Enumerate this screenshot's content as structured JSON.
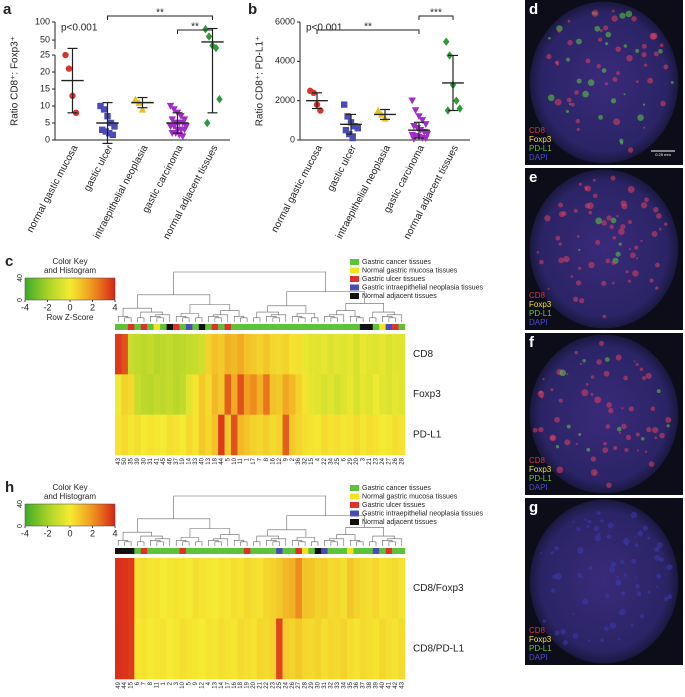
{
  "chart_data": [
    {
      "label": "a",
      "type": "scatter",
      "ylabel": "Ratio CD8⁺: Foxp3⁺",
      "ylim": [
        0,
        100
      ],
      "ybreak": 25,
      "yticks": [
        0,
        5,
        10,
        15,
        20,
        25,
        50,
        100
      ],
      "annotation": "p<0.001",
      "brackets": [
        {
          "label": "**",
          "between": [
            "gastic ulcer",
            "normal adjacent tissues"
          ]
        },
        {
          "label": "**",
          "between": [
            "gastic carcinoma",
            "normal adjacent tissues"
          ]
        }
      ],
      "series": [
        {
          "name": "normal gastic mucosa",
          "color": "#d9342b",
          "marker": "circle",
          "values": [
            25,
            21,
            13,
            8
          ],
          "mean": 17.5,
          "sd": 9.5
        },
        {
          "name": "gastic ulcer",
          "color": "#4b4bb5",
          "marker": "square",
          "values": [
            10,
            9,
            7,
            5,
            4,
            3,
            2.5,
            2,
            1.5
          ],
          "mean": 5,
          "sd": 6
        },
        {
          "name": "intraepithelial neoplasia",
          "color": "#e8c21a",
          "marker": "triangle",
          "values": [
            12,
            11,
            9
          ],
          "mean": 11,
          "sd": 1.5
        },
        {
          "name": "gastic carcinoma",
          "color": "#a02cc8",
          "marker": "triangle-down",
          "values": [
            10,
            9,
            8,
            7,
            6,
            6,
            5,
            5,
            5,
            4,
            4,
            4,
            3,
            3,
            3,
            2,
            2,
            1.5,
            1
          ],
          "mean": 5,
          "sd": 3
        },
        {
          "name": "normal adjacent tissues",
          "color": "#2a9a3a",
          "marker": "diamond",
          "values": [
            80,
            60,
            35,
            28,
            12,
            5
          ],
          "mean": 45,
          "sd": 37
        }
      ]
    },
    {
      "label": "b",
      "type": "scatter",
      "ylabel": "Ratio CD8⁺: PD-L1⁺",
      "ylim": [
        0,
        6000
      ],
      "yticks": [
        0,
        2000,
        4000,
        6000
      ],
      "annotation": "p<0.001",
      "brackets": [
        {
          "label": "***",
          "between": [
            "gastic carcinoma",
            "normal adjacent tissues"
          ]
        },
        {
          "label": "**",
          "between": [
            "normal gastic mucosa",
            "gastic carcinoma"
          ]
        }
      ],
      "series": [
        {
          "name": "normal gastic mucosa",
          "color": "#d9342b",
          "marker": "circle",
          "values": [
            2500,
            2400,
            1800,
            1500
          ],
          "mean": 2000,
          "sd": 400
        },
        {
          "name": "gastic ulcer",
          "color": "#4b4bb5",
          "marker": "square",
          "values": [
            1800,
            1200,
            900,
            700,
            600,
            500,
            300,
            100
          ],
          "mean": 800,
          "sd": 500
        },
        {
          "name": "intraepithelial neoplasia",
          "color": "#e8c21a",
          "marker": "triangle",
          "values": [
            1500,
            1300,
            1100
          ],
          "mean": 1300,
          "sd": 250
        },
        {
          "name": "gastic carcinoma",
          "color": "#a02cc8",
          "marker": "triangle-down",
          "values": [
            2000,
            1500,
            1200,
            1000,
            800,
            700,
            600,
            500,
            400,
            300,
            250,
            200,
            150,
            100,
            80,
            50
          ],
          "mean": 500,
          "sd": 400
        },
        {
          "name": "normal adjacent tissues",
          "color": "#2a9a3a",
          "marker": "diamond",
          "values": [
            5000,
            4300,
            2800,
            2000,
            1600,
            1500
          ],
          "mean": 2900,
          "sd": 1400
        }
      ]
    },
    {
      "label": "c",
      "type": "heatmap",
      "key_title": [
        "Color Key",
        "and Histogram"
      ],
      "key_xlabel": "Row Z-Score",
      "zlim": [
        -4,
        4
      ],
      "key_ticks": [
        -4,
        -2,
        0,
        2,
        4
      ],
      "hist_ticks": [
        0,
        40
      ],
      "legend": [
        {
          "name": "Gastric cancer tissues",
          "color": "#5cc23a"
        },
        {
          "name": "Normal gastric mucosa tissues",
          "color": "#f2e21f"
        },
        {
          "name": "Gastric ulcer tissues",
          "color": "#e0302a"
        },
        {
          "name": "Gastric intraepithelial neoplasia tissues",
          "color": "#4b4bb5"
        },
        {
          "name": "Normal adjacent tissues",
          "color": "#111111"
        }
      ],
      "columns": [
        43,
        50,
        35,
        39,
        30,
        31,
        41,
        45,
        46,
        37,
        19,
        14,
        33,
        40,
        13,
        18,
        44,
        5,
        10,
        11,
        1,
        17,
        7,
        8,
        16,
        12,
        9,
        2,
        36,
        32,
        15,
        4,
        22,
        34,
        25,
        6,
        29,
        20,
        3,
        21,
        23,
        24,
        27,
        26,
        28
      ],
      "column_groups": [
        0,
        0,
        2,
        0,
        2,
        0,
        1,
        0,
        4,
        2,
        0,
        3,
        0,
        4,
        0,
        2,
        0,
        2,
        0,
        0,
        0,
        0,
        0,
        0,
        0,
        0,
        0,
        0,
        0,
        0,
        0,
        0,
        0,
        0,
        0,
        0,
        0,
        0,
        4,
        4,
        0,
        1,
        3,
        2,
        0
      ],
      "rows": [
        {
          "name": "CD8",
          "values": [
            3.6,
            3.2,
            -1.2,
            -1.4,
            -1.5,
            -1.3,
            -1.6,
            -1.5,
            -1.4,
            -1.6,
            -1.5,
            -1.3,
            -1.2,
            -1.0,
            0.6,
            1.0,
            0.8,
            1.4,
            1.2,
            1.5,
            1.0,
            0.8,
            0.6,
            0.9,
            0.5,
            0.4,
            0.6,
            0.2,
            0.3,
            -0.3,
            -0.5,
            -0.6,
            -0.4,
            -0.7,
            -0.5,
            -0.6,
            -0.4,
            -0.8,
            -0.3,
            -0.5,
            -0.6,
            -0.4,
            -0.7,
            -0.5,
            -0.6
          ]
        },
        {
          "name": "Foxp3",
          "values": [
            -0.2,
            0.6,
            0.4,
            -1.2,
            -1.5,
            -1.6,
            -1.4,
            -1.5,
            -1.3,
            -1.6,
            -1.4,
            -0.5,
            0.2,
            0.8,
            0.4,
            1.2,
            0.8,
            3.0,
            1.5,
            3.2,
            1.8,
            2.2,
            1.4,
            2.6,
            1.0,
            0.8,
            1.6,
            1.2,
            0.6,
            0.2,
            -0.4,
            -0.6,
            -0.8,
            -0.5,
            -0.9,
            -0.6,
            -0.3,
            -0.8,
            -0.4,
            -0.6,
            -0.2,
            -0.5,
            -0.7,
            -0.4,
            -0.6
          ]
        },
        {
          "name": "PD-L1",
          "values": [
            0.2,
            0.4,
            0.1,
            0.3,
            0.0,
            0.2,
            0.1,
            0.0,
            0.3,
            0.2,
            0.0,
            0.4,
            0.2,
            0.8,
            0.5,
            1.0,
            3.6,
            0.8,
            3.2,
            1.2,
            0.9,
            0.6,
            0.5,
            0.7,
            0.4,
            0.6,
            3.0,
            0.8,
            0.5,
            0.3,
            0.2,
            0.1,
            0.4,
            0.2,
            0.3,
            0.1,
            0.2,
            0.4,
            0.1,
            0.3,
            0.2,
            0.0,
            0.1,
            0.3,
            0.2
          ]
        }
      ]
    },
    {
      "label": "h",
      "type": "heatmap",
      "key_title": [
        "Color Key",
        "and Histogram"
      ],
      "zlim": [
        -4,
        4
      ],
      "key_ticks": [
        -4,
        -2,
        0,
        2,
        4
      ],
      "hist_ticks": [
        0,
        40
      ],
      "legend": [
        {
          "name": "Gastric cancer tissues",
          "color": "#5cc23a"
        },
        {
          "name": "Normal gastric mucosa tissues",
          "color": "#f2e21f"
        },
        {
          "name": "Gastric ulcer tissues",
          "color": "#e0302a"
        },
        {
          "name": "Gastric intraepithelial neoplasia tissues",
          "color": "#4b4bb5"
        },
        {
          "name": "Normal adjacent tissues",
          "color": "#111111"
        }
      ],
      "columns": [
        49,
        44,
        15,
        6,
        7,
        8,
        11,
        1,
        2,
        3,
        10,
        5,
        9,
        12,
        4,
        13,
        14,
        17,
        16,
        18,
        19,
        20,
        21,
        22,
        23,
        25,
        24,
        26,
        27,
        28,
        29,
        30,
        31,
        32,
        33,
        34,
        35,
        36,
        37,
        38,
        39,
        40,
        41,
        42,
        43
      ],
      "column_groups": [
        4,
        4,
        4,
        0,
        2,
        0,
        0,
        0,
        0,
        0,
        2,
        0,
        0,
        0,
        0,
        0,
        0,
        0,
        0,
        0,
        2,
        0,
        0,
        0,
        0,
        3,
        0,
        0,
        2,
        1,
        0,
        4,
        3,
        0,
        0,
        0,
        1,
        0,
        0,
        0,
        3,
        0,
        2,
        0,
        0
      ],
      "rows": [
        {
          "name": "CD8/Foxp3",
          "values": [
            3.8,
            3.7,
            3.6,
            0.2,
            0.3,
            0.1,
            0.2,
            0.0,
            0.1,
            0.2,
            0.1,
            0.0,
            0.3,
            0.2,
            0.1,
            0.0,
            0.2,
            0.1,
            0.3,
            0.2,
            0.4,
            0.3,
            0.2,
            0.5,
            0.6,
            0.8,
            1.2,
            1.4,
            2.2,
            1.0,
            0.9,
            0.6,
            0.7,
            0.4,
            0.5,
            0.3,
            0.9,
            0.6,
            0.4,
            0.3,
            0.5,
            0.2,
            0.3,
            0.4,
            0.2
          ]
        },
        {
          "name": "CD8/PD-L1",
          "values": [
            3.8,
            3.7,
            3.6,
            0.1,
            0.2,
            0.0,
            0.1,
            0.2,
            0.0,
            0.1,
            0.3,
            0.2,
            0.1,
            0.0,
            0.2,
            0.1,
            0.3,
            0.2,
            0.1,
            0.4,
            0.3,
            0.2,
            0.5,
            0.4,
            0.6,
            3.4,
            0.7,
            0.6,
            0.8,
            0.5,
            0.4,
            0.6,
            0.3,
            0.5,
            0.4,
            0.6,
            0.3,
            0.2,
            0.4,
            0.3,
            0.2,
            0.5,
            0.3,
            0.2,
            0.4
          ]
        }
      ]
    }
  ],
  "images": [
    {
      "label": "d",
      "channels": [
        "CD8",
        "Foxp3",
        "PD-L1",
        "DAPI"
      ],
      "scale": "0.25 mm"
    },
    {
      "label": "e",
      "channels": [
        "CD8",
        "Foxp3",
        "PD-L1",
        "DAPI"
      ]
    },
    {
      "label": "f",
      "channels": [
        "CD8",
        "Foxp3",
        "PD-L1",
        "DAPI"
      ]
    },
    {
      "label": "g",
      "channels": [
        "CD8",
        "Foxp3",
        "PD-L1",
        "DAPI"
      ]
    }
  ]
}
